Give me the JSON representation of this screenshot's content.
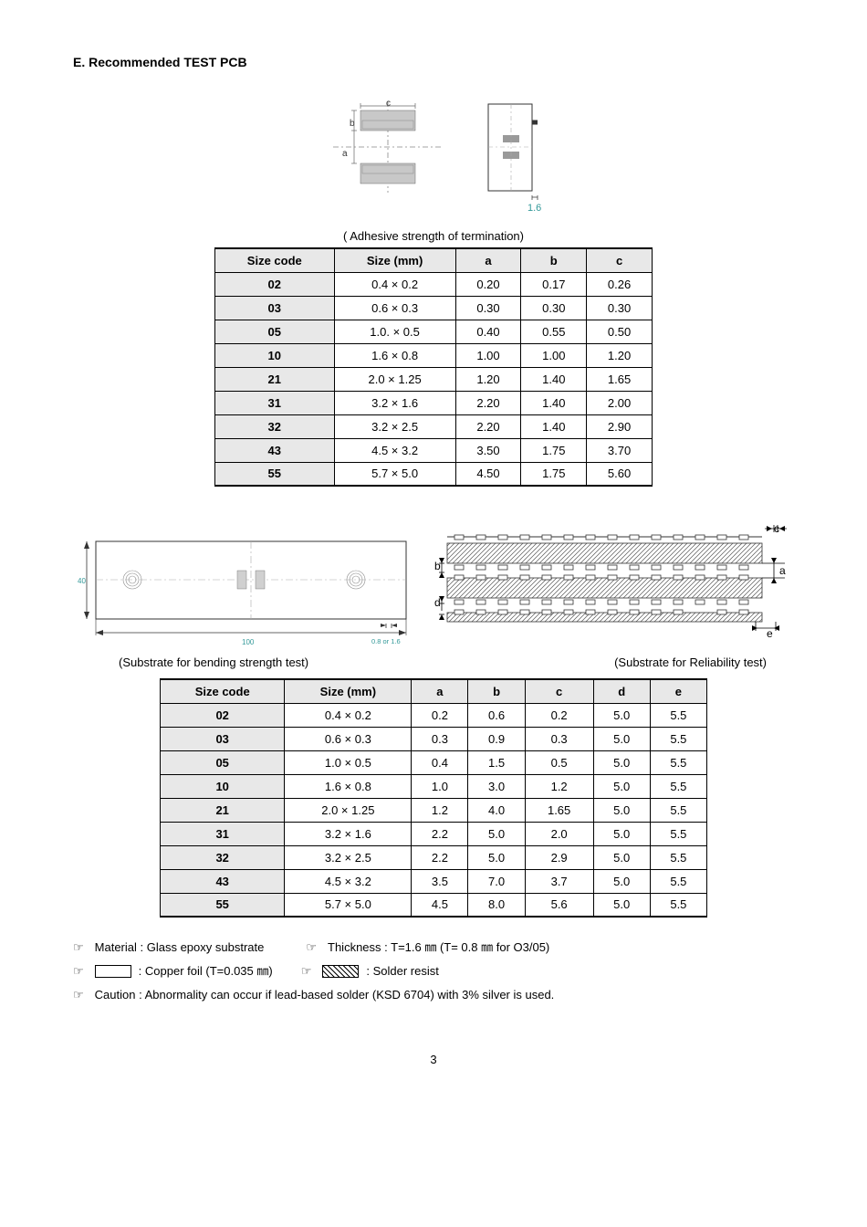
{
  "section_title": "E. Recommended TEST PCB",
  "table1": {
    "caption": "( Adhesive strength of termination)",
    "columns": [
      "Size code",
      "Size (mm)",
      "a",
      "b",
      "c"
    ],
    "rows": [
      [
        "02",
        "0.4 × 0.2",
        "0.20",
        "0.17",
        "0.26"
      ],
      [
        "03",
        "0.6 × 0.3",
        "0.30",
        "0.30",
        "0.30"
      ],
      [
        "05",
        "1.0. × 0.5",
        "0.40",
        "0.55",
        "0.50"
      ],
      [
        "10",
        "1.6 × 0.8",
        "1.00",
        "1.00",
        "1.20"
      ],
      [
        "21",
        "2.0 × 1.25",
        "1.20",
        "1.40",
        "1.65"
      ],
      [
        "31",
        "3.2 × 1.6",
        "2.20",
        "1.40",
        "2.00"
      ],
      [
        "32",
        "3.2 × 2.5",
        "2.20",
        "1.40",
        "2.90"
      ],
      [
        "43",
        "4.5 × 3.2",
        "3.50",
        "1.75",
        "3.70"
      ],
      [
        "55",
        "5.7 × 5.0",
        "4.50",
        "1.75",
        "5.60"
      ]
    ]
  },
  "diagram_label_left": "(Substrate for bending strength test)",
  "diagram_label_right": "(Substrate for Reliability test)",
  "table2": {
    "columns": [
      "Size code",
      "Size (mm)",
      "a",
      "b",
      "c",
      "d",
      "e"
    ],
    "rows": [
      [
        "02",
        "0.4 × 0.2",
        "0.2",
        "0.6",
        "0.2",
        "5.0",
        "5.5"
      ],
      [
        "03",
        "0.6 × 0.3",
        "0.3",
        "0.9",
        "0.3",
        "5.0",
        "5.5"
      ],
      [
        "05",
        "1.0 × 0.5",
        "0.4",
        "1.5",
        "0.5",
        "5.0",
        "5.5"
      ],
      [
        "10",
        "1.6 × 0.8",
        "1.0",
        "3.0",
        "1.2",
        "5.0",
        "5.5"
      ],
      [
        "21",
        "2.0 × 1.25",
        "1.2",
        "4.0",
        "1.65",
        "5.0",
        "5.5"
      ],
      [
        "31",
        "3.2 × 1.6",
        "2.2",
        "5.0",
        "2.0",
        "5.0",
        "5.5"
      ],
      [
        "32",
        "3.2 × 2.5",
        "2.2",
        "5.0",
        "2.9",
        "5.0",
        "5.5"
      ],
      [
        "43",
        "4.5 × 3.2",
        "3.5",
        "7.0",
        "3.7",
        "5.0",
        "5.5"
      ],
      [
        "55",
        "5.7 × 5.0",
        "4.5",
        "8.0",
        "5.6",
        "5.0",
        "5.5"
      ]
    ]
  },
  "notes": {
    "material": "Material : Glass epoxy substrate",
    "thickness": "Thickness : T=1.6 ㎜ (T= 0.8 ㎜ for O3/05)",
    "copper": ": Copper foil (T=0.035 ㎜)",
    "solder": ": Solder resist",
    "caution": "Caution : Abnormality can occur if lead-based solder (KSD 6704) with 3% silver is used."
  },
  "page_number": "3",
  "dim_top_16": "1.6",
  "dim_100": "100",
  "dim_08_16": "0.8 or 1.6",
  "dim_40": "40"
}
